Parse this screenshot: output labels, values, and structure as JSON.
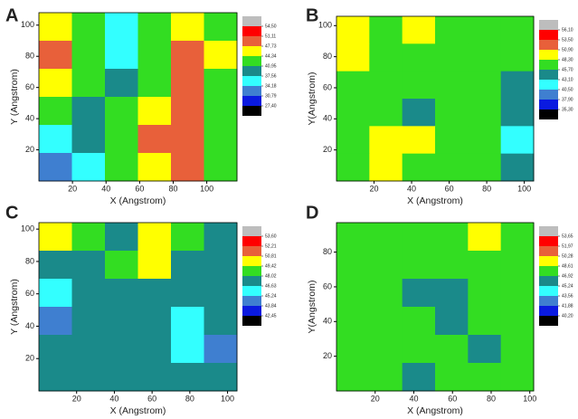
{
  "chart_data": [
    {
      "type": "contour",
      "panel_label": "A",
      "xlabel": "X (Angstrom)",
      "ylabel": "Y (Angstrom)",
      "xlim": [
        0,
        118
      ],
      "ylim": [
        0,
        108
      ],
      "xticks": [
        20,
        40,
        60,
        80,
        100
      ],
      "yticks": [
        20,
        40,
        60,
        80,
        100
      ],
      "levels": [
        {
          "value": 54.5,
          "label": "54,50"
        },
        {
          "value": 51.11,
          "label": "51,11"
        },
        {
          "value": 47.73,
          "label": "47,73"
        },
        {
          "value": 44.34,
          "label": "44,34"
        },
        {
          "value": 40.95,
          "label": "40,95"
        },
        {
          "value": 37.56,
          "label": "37,56"
        },
        {
          "value": 34.18,
          "label": "34,18"
        },
        {
          "value": 30.79,
          "label": "30,79"
        },
        {
          "value": 27.4,
          "label": "27,40"
        }
      ],
      "colors": [
        "#bdbdbd",
        "#ff0000",
        "#e8603a",
        "#ffff00",
        "#33dd22",
        "#1a8a8a",
        "#33ffff",
        "#3f7fd0",
        "#0a1ae0",
        "#000000"
      ],
      "z": [
        [
          45,
          42,
          37,
          41,
          46,
          44
        ],
        [
          48,
          42,
          36,
          42,
          49,
          45
        ],
        [
          45,
          41,
          38,
          43,
          50,
          44
        ],
        [
          41,
          39,
          41,
          47,
          49,
          42
        ],
        [
          36,
          38,
          43,
          48,
          50,
          41
        ],
        [
          34,
          37,
          44,
          47,
          51,
          44
        ]
      ]
    },
    {
      "type": "contour",
      "panel_label": "B",
      "xlabel": "X (Angstrom)",
      "ylabel": "Y(Angstrom)",
      "xlim": [
        0,
        105
      ],
      "ylim": [
        0,
        106
      ],
      "xticks": [
        20,
        40,
        60,
        80,
        100
      ],
      "yticks": [
        20,
        40,
        60,
        80,
        100
      ],
      "levels": [
        {
          "value": 56.1,
          "label": "56,10"
        },
        {
          "value": 53.5,
          "label": "53,50"
        },
        {
          "value": 50.9,
          "label": "50,90"
        },
        {
          "value": 48.3,
          "label": "48,30"
        },
        {
          "value": 45.7,
          "label": "45,70"
        },
        {
          "value": 43.1,
          "label": "43,10"
        },
        {
          "value": 40.5,
          "label": "40,50"
        },
        {
          "value": 37.9,
          "label": "37,90"
        },
        {
          "value": 35.3,
          "label": "35,30"
        }
      ],
      "colors": [
        "#bdbdbd",
        "#ff0000",
        "#e8603a",
        "#ffff00",
        "#33dd22",
        "#1a8a8a",
        "#33ffff",
        "#3f7fd0",
        "#0a1ae0",
        "#000000"
      ],
      "z": [
        [
          49,
          47,
          49,
          47,
          47,
          48
        ],
        [
          49,
          47,
          47,
          46,
          47,
          47
        ],
        [
          47,
          48,
          46,
          47,
          46,
          44
        ],
        [
          46,
          47,
          45,
          47,
          46,
          44
        ],
        [
          47,
          49,
          49,
          47,
          46,
          42
        ],
        [
          48,
          49,
          48,
          46,
          47,
          44
        ]
      ]
    },
    {
      "type": "contour",
      "panel_label": "C",
      "xlabel": "X (Angstrom)",
      "ylabel": "Y (Angstrom)",
      "xlim": [
        0,
        105
      ],
      "ylim": [
        0,
        104
      ],
      "xticks": [
        20,
        40,
        60,
        80,
        100
      ],
      "yticks": [
        20,
        40,
        60,
        80,
        100
      ],
      "levels": [
        {
          "value": 53.6,
          "label": "53,60"
        },
        {
          "value": 52.21,
          "label": "52,21"
        },
        {
          "value": 50.81,
          "label": "50,81"
        },
        {
          "value": 49.42,
          "label": "49,42"
        },
        {
          "value": 48.02,
          "label": "48,02"
        },
        {
          "value": 46.63,
          "label": "46,63"
        },
        {
          "value": 45.24,
          "label": "45,24"
        },
        {
          "value": 43.84,
          "label": "43,84"
        },
        {
          "value": 42.45,
          "label": "42,45"
        }
      ],
      "colors": [
        "#bdbdbd",
        "#ff0000",
        "#e8603a",
        "#ffff00",
        "#33dd22",
        "#1a8a8a",
        "#33ffff",
        "#3f7fd0",
        "#0a1ae0",
        "#000000"
      ],
      "z": [
        [
          50,
          49,
          48,
          50,
          49,
          47
        ],
        [
          47,
          48,
          49,
          50,
          47,
          47
        ],
        [
          46,
          47,
          48,
          47,
          47,
          48
        ],
        [
          45,
          47,
          47,
          48,
          46,
          47
        ],
        [
          47,
          48,
          47,
          47,
          46,
          45
        ],
        [
          47,
          47,
          48,
          47,
          47,
          48
        ]
      ]
    },
    {
      "type": "contour",
      "panel_label": "D",
      "xlabel": "X (Angstrom)",
      "ylabel": "Y(Angstrom)",
      "xlim": [
        0,
        102
      ],
      "ylim": [
        0,
        97
      ],
      "xticks": [
        20,
        40,
        60,
        80,
        100
      ],
      "yticks": [
        20,
        40,
        60,
        80
      ],
      "levels": [
        {
          "value": 53.65,
          "label": "53,65"
        },
        {
          "value": 51.97,
          "label": "51,97"
        },
        {
          "value": 50.28,
          "label": "50,28"
        },
        {
          "value": 48.61,
          "label": "48,61"
        },
        {
          "value": 46.92,
          "label": "46,92"
        },
        {
          "value": 45.24,
          "label": "45,24"
        },
        {
          "value": 43.56,
          "label": "43,56"
        },
        {
          "value": 41.88,
          "label": "41,88"
        },
        {
          "value": 40.2,
          "label": "40,20"
        }
      ],
      "colors": [
        "#bdbdbd",
        "#ff0000",
        "#e8603a",
        "#ffff00",
        "#33dd22",
        "#1a8a8a",
        "#33ffff",
        "#3f7fd0",
        "#0a1ae0",
        "#000000"
      ],
      "z": [
        [
          48,
          48,
          47,
          48,
          49,
          48
        ],
        [
          47,
          47,
          47,
          48,
          48,
          47
        ],
        [
          48,
          47,
          46,
          46,
          47,
          48
        ],
        [
          48,
          47,
          48,
          46,
          47,
          47
        ],
        [
          48,
          47,
          47,
          47,
          46,
          48
        ],
        [
          47,
          47,
          46,
          48,
          47,
          48
        ]
      ]
    }
  ]
}
